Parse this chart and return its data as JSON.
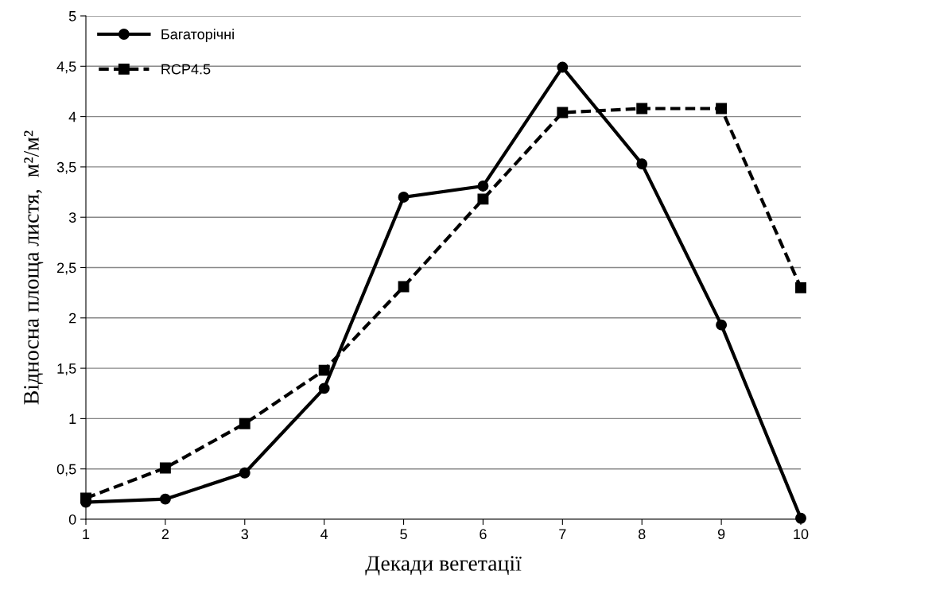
{
  "chart_data": {
    "type": "line",
    "xlabel": "Декади вегетації",
    "ylabel": "Відносна площа листя,  м²/м²",
    "x": [
      1,
      2,
      3,
      4,
      5,
      6,
      7,
      8,
      9,
      10
    ],
    "series": [
      {
        "name": "Багаторічні",
        "color": "#000000",
        "marker": "circle",
        "line_style": "solid",
        "values": [
          0.17,
          0.2,
          0.46,
          1.3,
          3.2,
          3.31,
          4.49,
          3.53,
          1.93,
          0.01
        ]
      },
      {
        "name": "RCP4.5",
        "color": "#000000",
        "marker": "square",
        "line_style": "dashed",
        "values": [
          0.21,
          0.51,
          0.95,
          1.48,
          2.31,
          3.18,
          4.04,
          4.08,
          4.08,
          2.3
        ]
      }
    ],
    "xlim": [
      1,
      10
    ],
    "xticks": [
      1,
      2,
      3,
      4,
      5,
      6,
      7,
      8,
      9,
      10
    ],
    "ylim": [
      0,
      5
    ],
    "yticks": [
      0,
      {
        "value": 0.5,
        "label": "0,5"
      },
      1,
      {
        "value": 1.5,
        "label": "1,5"
      },
      2,
      {
        "value": 2.5,
        "label": "2,5"
      },
      3,
      {
        "value": 3.5,
        "label": "3,5"
      },
      4,
      {
        "value": 4.5,
        "label": "4,5"
      },
      5
    ],
    "grid": "y",
    "legend": "top left"
  }
}
